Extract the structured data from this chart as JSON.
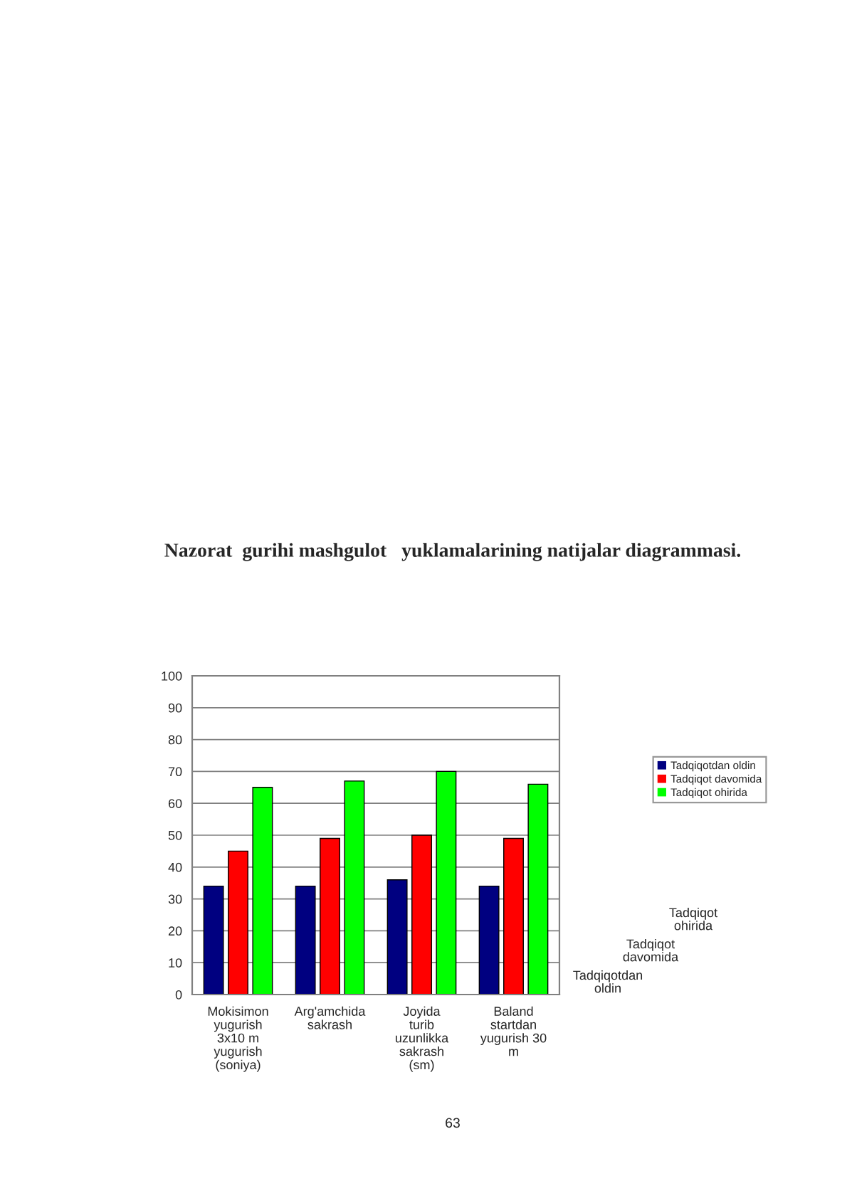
{
  "chart_data": {
    "type": "bar",
    "title": "Nazorat  gurihi mashgulot   yuklamalarining natijalar diagrammasi.",
    "categories": [
      "Mokisimon yugurish 3x10 m yugurish (soniya)",
      "Arg'amchida sakrash",
      "Joyida turib uzunlikka sakrash (sm)",
      "Baland startdan yugurish 30 m"
    ],
    "series": [
      {
        "name": "Tadqiqotdan oldin",
        "color": "#000080",
        "values": [
          34,
          34,
          36,
          34
        ]
      },
      {
        "name": "Tadqiqot davomida",
        "color": "#ff0000",
        "values": [
          45,
          49,
          50,
          49
        ]
      },
      {
        "name": "Tadqiqot ohirida",
        "color": "#00ff00",
        "values": [
          65,
          67,
          70,
          66
        ]
      }
    ],
    "ylim": [
      0,
      100
    ],
    "yticks": [
      0,
      10,
      20,
      30,
      40,
      50,
      60,
      70,
      80,
      90,
      100
    ],
    "grid": "y",
    "legend": "right",
    "annotations": [
      "63"
    ]
  }
}
